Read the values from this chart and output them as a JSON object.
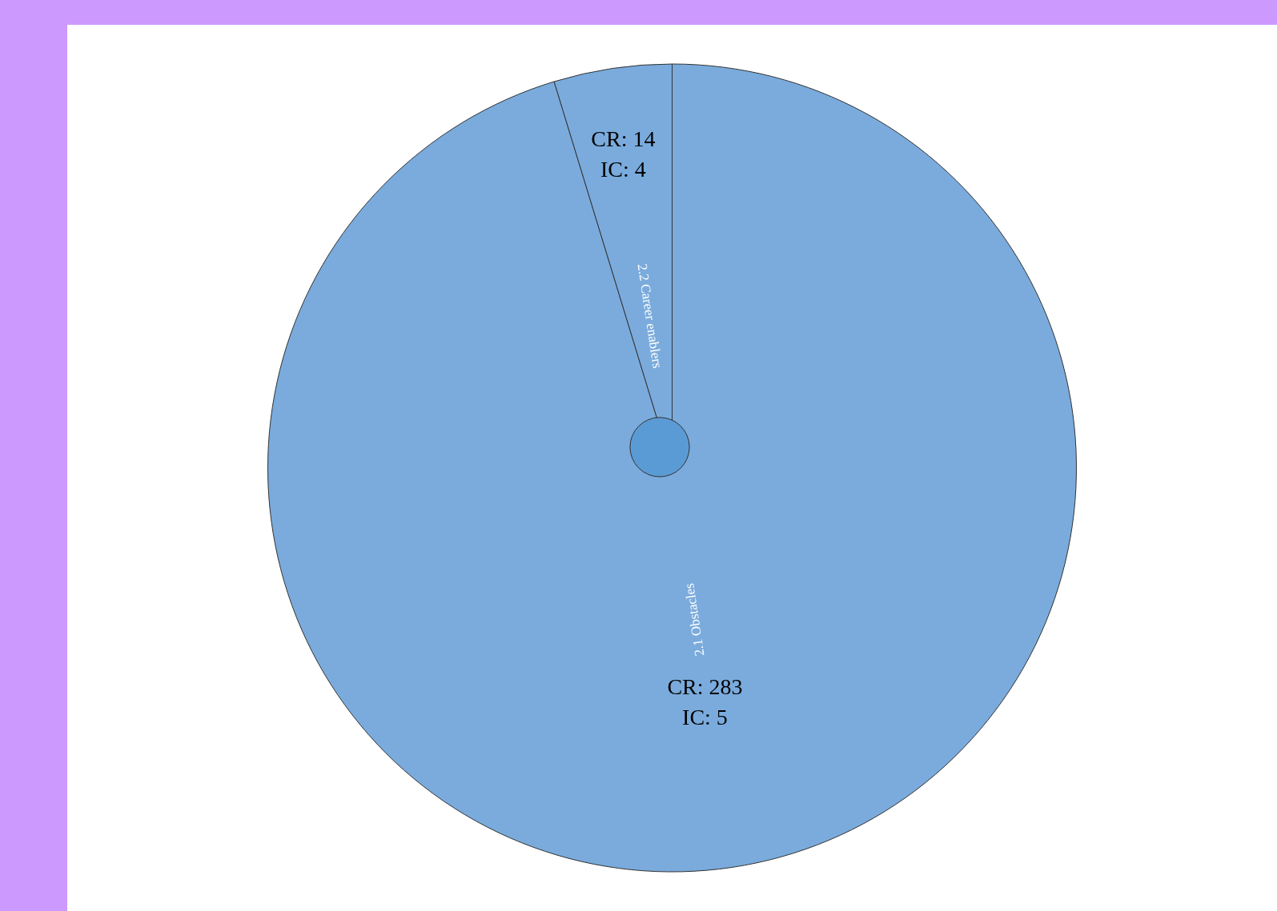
{
  "chart_data": {
    "type": "pie",
    "categories": [
      "2.1 Obstacles",
      "2.2 Career enablers"
    ],
    "values": [
      283,
      14
    ],
    "colors": [
      "#7aabdc",
      "#7aabdc"
    ],
    "value_labels": [
      "CR: 283\nIC: 5",
      "CR: 14\nIC: 4"
    ],
    "legend": false
  }
}
